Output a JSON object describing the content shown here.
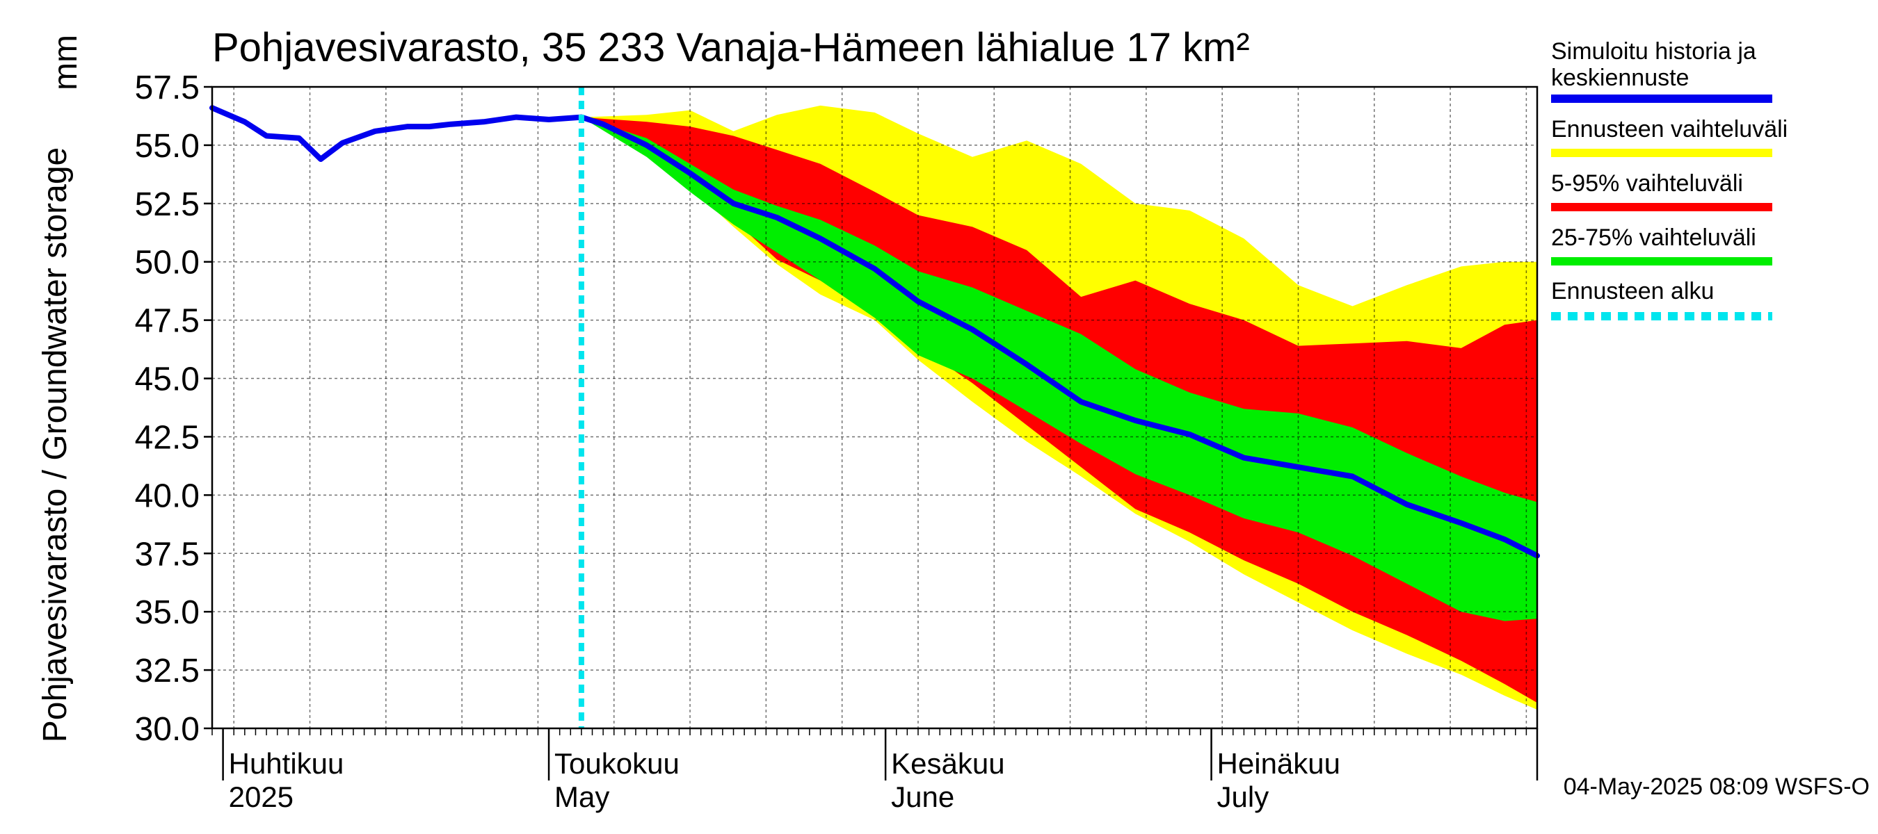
{
  "chart_data": {
    "type": "area",
    "title": "Pohjavesivarasto, 35 233 Vanaja-Hämeen lähialue 17 km²",
    "ylabel": "Pohjavesivarasto / Groundwater storage",
    "yunit": "mm",
    "ylim": [
      30.0,
      57.5
    ],
    "yticks": [
      "30.0",
      "32.5",
      "35.0",
      "37.5",
      "40.0",
      "42.5",
      "45.0",
      "47.5",
      "50.0",
      "52.5",
      "55.0",
      "57.5"
    ],
    "xlim": [
      "2025-03-31",
      "2025-07-31"
    ],
    "month_labels": [
      {
        "date": "2025-04-01",
        "fi": "Huhtikuu",
        "en": "2025"
      },
      {
        "date": "2025-05-01",
        "fi": "Toukokuu",
        "en": "May"
      },
      {
        "date": "2025-06-01",
        "fi": "Kesäkuu",
        "en": "June"
      },
      {
        "date": "2025-07-01",
        "fi": "Heinäkuu",
        "en": "July"
      }
    ],
    "grid": true,
    "legend_position": "right",
    "forecast_start": "2025-05-04",
    "legend": [
      {
        "label": "Simuloitu historia ja keskiennuste",
        "color": "#0000ee",
        "style": "solid"
      },
      {
        "label": "Ennusteen vaihteluväli",
        "color": "#ffff00",
        "style": "solid"
      },
      {
        "label": "5-95% vaihteluväli",
        "color": "#ff0000",
        "style": "solid"
      },
      {
        "label": "25-75% vaihteluväli",
        "color": "#00ee00",
        "style": "solid"
      },
      {
        "label": "Ennusteen alku",
        "color": "#00e5ee",
        "style": "dotted"
      }
    ],
    "series": [
      {
        "name": "Simuloitu historia ja keskiennuste",
        "x": [
          "2025-03-31",
          "2025-04-03",
          "2025-04-05",
          "2025-04-08",
          "2025-04-10",
          "2025-04-12",
          "2025-04-15",
          "2025-04-18",
          "2025-04-20",
          "2025-04-22",
          "2025-04-25",
          "2025-04-28",
          "2025-05-01",
          "2025-05-04",
          "2025-05-06",
          "2025-05-10",
          "2025-05-14",
          "2025-05-18",
          "2025-05-22",
          "2025-05-26",
          "2025-05-31",
          "2025-06-04",
          "2025-06-09",
          "2025-06-14",
          "2025-06-19",
          "2025-06-24",
          "2025-06-29",
          "2025-07-04",
          "2025-07-09",
          "2025-07-14",
          "2025-07-19",
          "2025-07-24",
          "2025-07-28",
          "2025-07-31"
        ],
        "y": [
          56.6,
          56.0,
          55.4,
          55.3,
          54.4,
          55.1,
          55.6,
          55.8,
          55.8,
          55.9,
          56.0,
          56.2,
          56.1,
          56.2,
          55.9,
          55.0,
          53.8,
          52.5,
          51.9,
          51.0,
          49.7,
          48.3,
          47.1,
          45.6,
          44.0,
          43.2,
          42.6,
          41.6,
          41.2,
          40.8,
          39.6,
          38.8,
          38.1,
          37.4
        ]
      },
      {
        "name": "Ennusteen vaihteluväli",
        "x": [
          "2025-05-04",
          "2025-05-10",
          "2025-05-14",
          "2025-05-18",
          "2025-05-22",
          "2025-05-26",
          "2025-05-31",
          "2025-06-04",
          "2025-06-09",
          "2025-06-14",
          "2025-06-19",
          "2025-06-24",
          "2025-06-29",
          "2025-07-04",
          "2025-07-09",
          "2025-07-14",
          "2025-07-19",
          "2025-07-24",
          "2025-07-28",
          "2025-07-31"
        ],
        "upper": [
          56.2,
          56.3,
          56.5,
          55.6,
          56.3,
          56.7,
          56.4,
          55.5,
          54.5,
          55.2,
          54.2,
          52.5,
          52.2,
          51.0,
          49.0,
          48.1,
          49.0,
          49.8,
          50.0,
          50.0
        ],
        "lower": [
          56.2,
          55.2,
          53.2,
          51.5,
          49.9,
          48.6,
          47.5,
          45.8,
          44.0,
          42.3,
          40.8,
          39.2,
          38.0,
          36.6,
          35.4,
          34.2,
          33.2,
          32.3,
          31.4,
          30.8
        ]
      },
      {
        "name": "5-95% vaihteluväli",
        "x": [
          "2025-05-04",
          "2025-05-10",
          "2025-05-14",
          "2025-05-18",
          "2025-05-22",
          "2025-05-26",
          "2025-05-31",
          "2025-06-04",
          "2025-06-09",
          "2025-06-14",
          "2025-06-19",
          "2025-06-24",
          "2025-06-29",
          "2025-07-04",
          "2025-07-09",
          "2025-07-14",
          "2025-07-19",
          "2025-07-24",
          "2025-07-28",
          "2025-07-31"
        ],
        "upper": [
          56.2,
          56.0,
          55.8,
          55.4,
          54.8,
          54.2,
          53.0,
          52.0,
          51.5,
          50.5,
          48.5,
          49.2,
          48.2,
          47.5,
          46.4,
          46.5,
          46.6,
          46.3,
          47.3,
          47.5
        ],
        "lower": [
          56.2,
          55.1,
          53.4,
          51.8,
          50.1,
          49.2,
          47.8,
          46.4,
          44.8,
          43.0,
          41.2,
          39.4,
          38.4,
          37.2,
          36.2,
          35.0,
          34.0,
          32.9,
          31.9,
          31.1
        ]
      },
      {
        "name": "25-75% vaihteluväli",
        "x": [
          "2025-05-04",
          "2025-05-10",
          "2025-05-14",
          "2025-05-18",
          "2025-05-22",
          "2025-05-26",
          "2025-05-31",
          "2025-06-04",
          "2025-06-09",
          "2025-06-14",
          "2025-06-19",
          "2025-06-24",
          "2025-06-29",
          "2025-07-04",
          "2025-07-09",
          "2025-07-14",
          "2025-07-19",
          "2025-07-24",
          "2025-07-28",
          "2025-07-31"
        ],
        "upper": [
          56.2,
          55.3,
          54.2,
          53.1,
          52.4,
          51.8,
          50.7,
          49.6,
          48.9,
          47.9,
          46.9,
          45.4,
          44.4,
          43.7,
          43.5,
          42.9,
          41.8,
          40.8,
          40.1,
          39.7
        ],
        "lower": [
          56.2,
          54.5,
          53.0,
          51.6,
          50.4,
          49.2,
          47.6,
          46.0,
          45.0,
          43.6,
          42.2,
          40.9,
          40.0,
          39.0,
          38.4,
          37.4,
          36.2,
          35.0,
          34.6,
          34.7
        ]
      }
    ]
  },
  "footer": "04-May-2025 08:09 WSFS-O"
}
